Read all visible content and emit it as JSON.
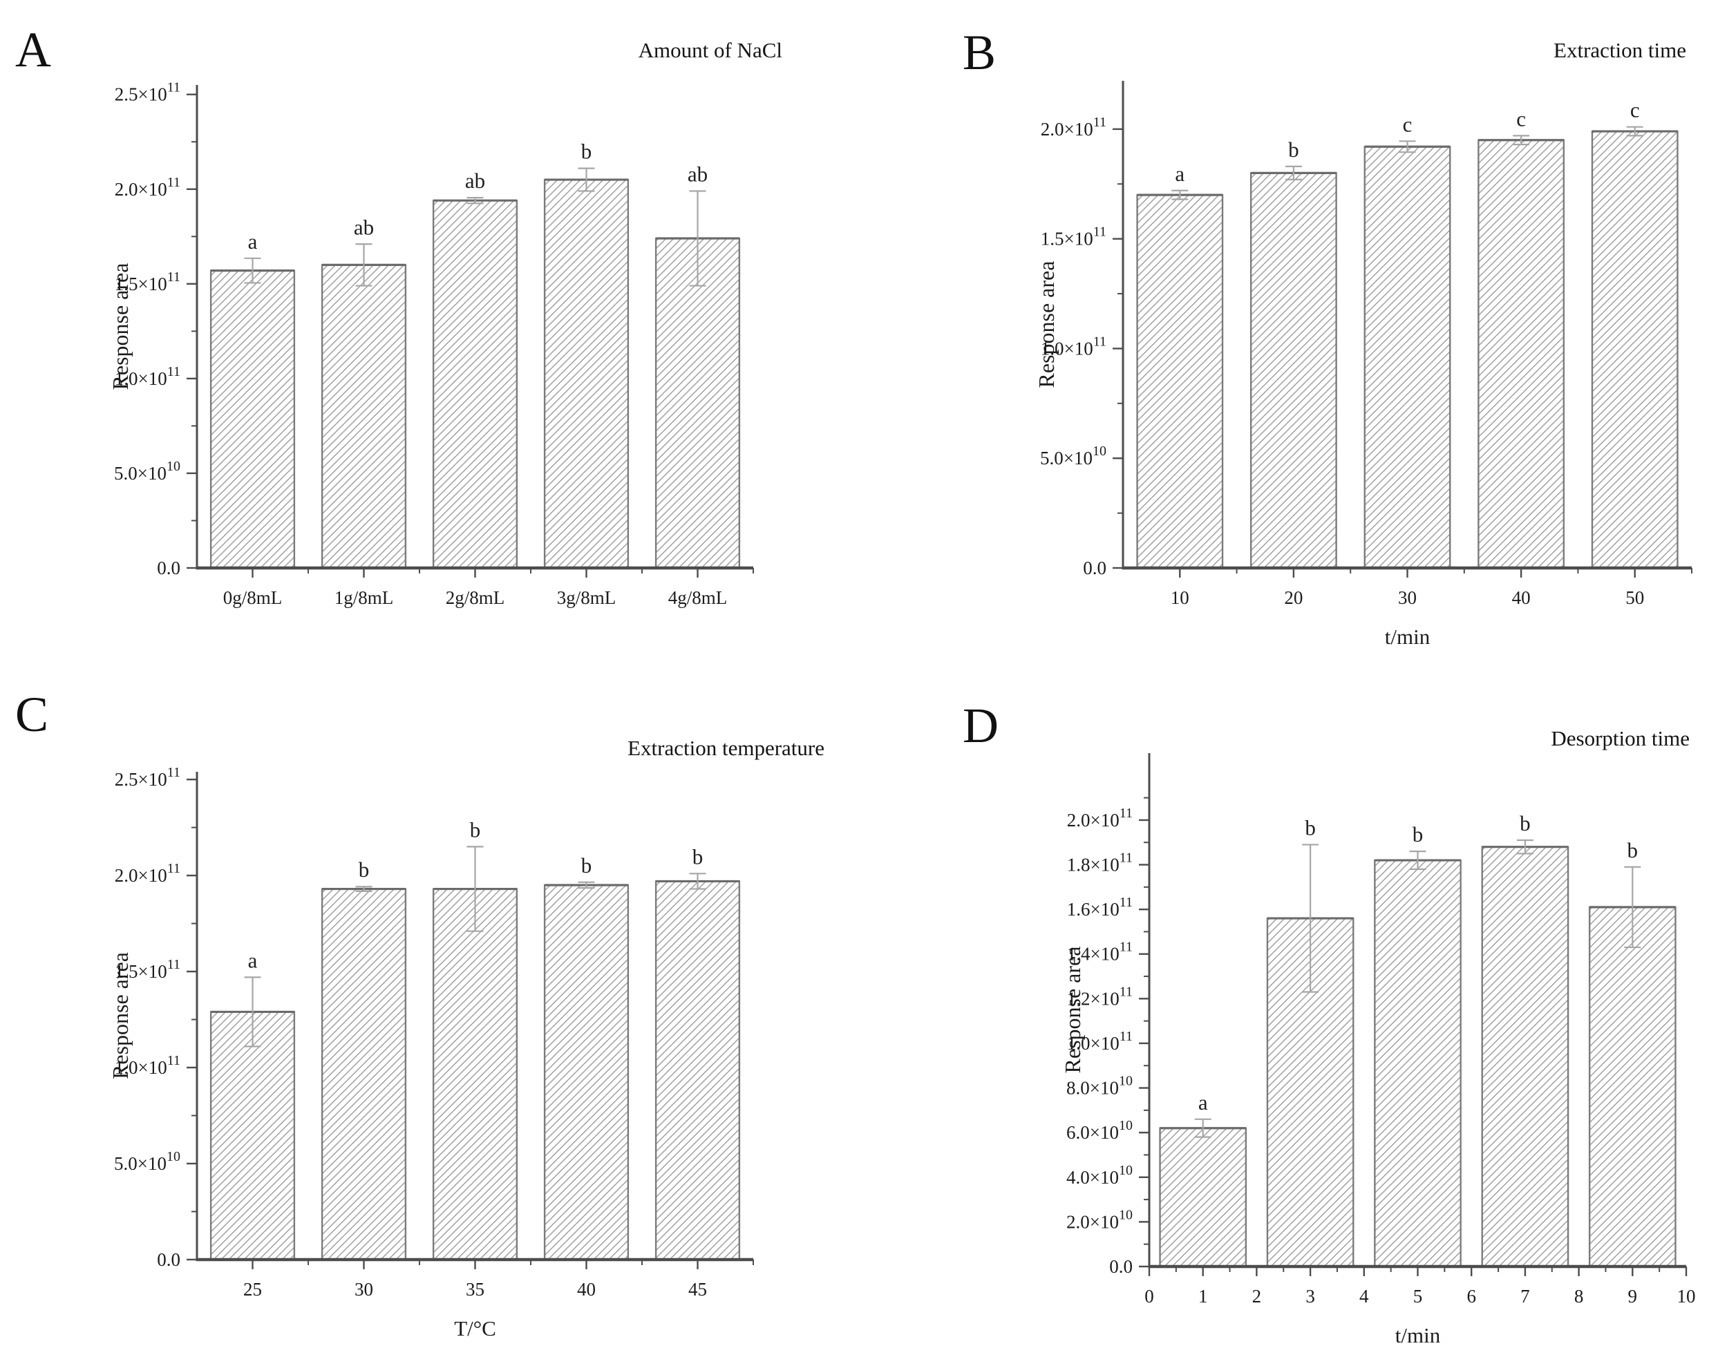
{
  "figure": {
    "ylabel_shared": "Response area",
    "colors": {
      "background": "#ffffff",
      "text": "#1c1c1c",
      "axis": "#4c4c4c",
      "bar_fill": "#ffffff",
      "bar_stroke": "#7b7b7b",
      "bar_top_edge": "#6a6a6a",
      "hatch": "#9e9e9e",
      "error_bar": "#a6a6a6",
      "sig_letter": "#1f1f1f"
    },
    "hatch_style": "diagonal-forward-slash"
  },
  "chart_data": [
    {
      "type": "bar",
      "panel": "A",
      "title": "Amount of NaCl",
      "xlabel": "",
      "ylabel": "Response area",
      "categories": [
        "0g/8mL",
        "1g/8mL",
        "2g/8mL",
        "3g/8mL",
        "4g/8mL"
      ],
      "values": [
        157000000000.0,
        160000000000.0,
        194000000000.0,
        205000000000.0,
        174000000000.0
      ],
      "errors": [
        6500000000.0,
        11000000000.0,
        1500000000.0,
        6000000000.0,
        25000000000.0
      ],
      "sig_letters": [
        "a",
        "ab",
        "ab",
        "b",
        "ab"
      ],
      "ylim": [
        0,
        255000000000.0
      ],
      "ytick_step": 50000000000.0,
      "yminor_step": 25000000000.0,
      "ytick_labels": [
        "0.0",
        "5.0×10^10",
        "1.0×10^11",
        "1.5×10^11",
        "2.0×10^11",
        "2.5×10^11"
      ],
      "grid": false,
      "legend": null
    },
    {
      "type": "bar",
      "panel": "B",
      "title": "Extraction time",
      "xlabel": "t/min",
      "ylabel": "Response area",
      "categories": [
        "10",
        "20",
        "30",
        "40",
        "50"
      ],
      "values": [
        170000000000.0,
        180000000000.0,
        192000000000.0,
        195000000000.0,
        199000000000.0
      ],
      "errors": [
        2000000000.0,
        3000000000.0,
        2500000000.0,
        2000000000.0,
        2000000000.0
      ],
      "sig_letters": [
        "a",
        "b",
        "c",
        "c",
        "c"
      ],
      "ylim": [
        0,
        222000000000.0
      ],
      "ytick_step": 50000000000.0,
      "yminor_step": 25000000000.0,
      "ytick_labels": [
        "0.0",
        "5.0×10^10",
        "1.0×10^11",
        "1.5×10^11",
        "2.0×10^11"
      ],
      "grid": false,
      "legend": null
    },
    {
      "type": "bar",
      "panel": "C",
      "title": "Extraction temperature",
      "xlabel": "T/°C",
      "ylabel": "Response area",
      "categories": [
        "25",
        "30",
        "35",
        "40",
        "45"
      ],
      "values": [
        129000000000.0,
        193000000000.0,
        193000000000.0,
        195000000000.0,
        197000000000.0
      ],
      "errors": [
        18000000000.0,
        1200000000.0,
        22000000000.0,
        1500000000.0,
        4000000000.0
      ],
      "sig_letters": [
        "a",
        "b",
        "b",
        "b",
        "b"
      ],
      "ylim": [
        0,
        254000000000.0
      ],
      "ytick_step": 50000000000.0,
      "yminor_step": 25000000000.0,
      "ytick_labels": [
        "0.0",
        "5.0×10^10",
        "1.0×10^11",
        "1.5×10^11",
        "2.0×10^11",
        "2.5×10^11"
      ],
      "grid": false,
      "legend": null
    },
    {
      "type": "bar",
      "panel": "D",
      "title": "Desorption time",
      "xlabel": "t/min",
      "ylabel": "Response area",
      "x_axis": {
        "kind": "numeric",
        "range": [
          0,
          10
        ],
        "major_step": 1,
        "minor_step": 0.5,
        "tick_labels": [
          "0",
          "1",
          "2",
          "3",
          "4",
          "5",
          "6",
          "7",
          "8",
          "9",
          "10"
        ],
        "bar_centers": [
          1,
          3,
          5,
          7,
          9
        ],
        "bar_width": 1.6
      },
      "values": [
        62000000000.0,
        156000000000.0,
        182000000000.0,
        188000000000.0,
        161000000000.0
      ],
      "errors": [
        4000000000.0,
        33000000000.0,
        4000000000.0,
        3000000000.0,
        18000000000.0
      ],
      "sig_letters": [
        "a",
        "b",
        "b",
        "b",
        "b"
      ],
      "ylim": [
        0,
        230000000000.0
      ],
      "ytick_step": 20000000000.0,
      "yminor_step": 10000000000.0,
      "ytick_labels": [
        "0.0",
        "2.0×10^10",
        "4.0×10^10",
        "6.0×10^10",
        "8.0×10^10",
        "1.0×10^11",
        "1.2×10^11",
        "1.4×10^11",
        "1.6×10^11",
        "1.8×10^11",
        "2.0×10^11"
      ],
      "grid": false,
      "legend": null
    }
  ]
}
